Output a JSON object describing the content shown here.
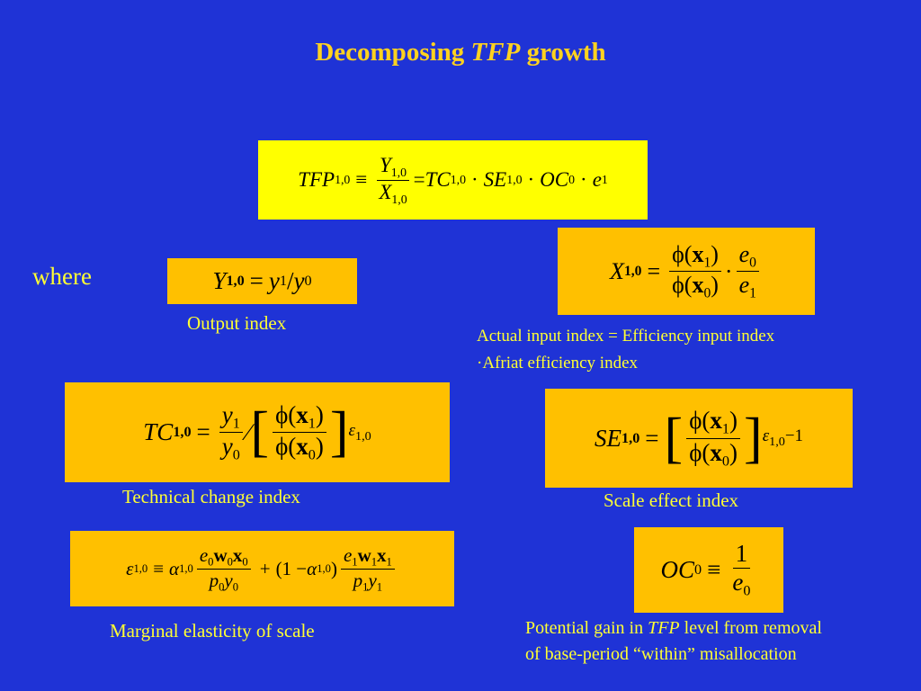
{
  "title": {
    "lead": "Decomposing",
    "italic": "TFP",
    "rest": "growth"
  },
  "where": "where",
  "formulas": {
    "tfp": [
      "TFP",
      "1,0",
      "≡",
      "Y",
      "1,0",
      "X",
      "1,0",
      "=",
      "TC",
      "1,0",
      "·",
      "SE",
      "1,0",
      "·",
      "OC",
      "0",
      "·",
      "e",
      "1"
    ],
    "y": [
      "Y",
      "1,0",
      "=",
      "y",
      "1",
      "/",
      "y",
      "0"
    ],
    "x": [
      "X",
      "1,0",
      "=",
      "ϕ(",
      "x",
      "1",
      ")",
      "ϕ(",
      "x",
      "0",
      ")",
      "·",
      "e",
      "0",
      "e",
      "1"
    ],
    "tc": [
      "TC",
      "1,0",
      "=",
      "y",
      "1",
      "y",
      "0",
      "∕",
      "[",
      "ϕ(",
      "x",
      "1",
      ")",
      "ϕ(",
      "x",
      "0",
      ")",
      "]",
      "ε",
      "1,0"
    ],
    "se": [
      "SE",
      "1,0",
      "=",
      "[",
      "ϕ(",
      "x",
      "1",
      ")",
      "ϕ(",
      "x",
      "0",
      ")",
      "]",
      "ε",
      "1,0",
      "−1"
    ],
    "eps": [
      "ε",
      "1,0",
      "≡",
      "α",
      "1,0",
      "e",
      "0",
      "w",
      "0",
      "x",
      "0",
      "p",
      "0",
      "y",
      "0",
      "+",
      "(1 −",
      "α",
      "1,0",
      ")",
      "e",
      "1",
      "w",
      "1",
      "x",
      "1",
      "p",
      "1",
      "y",
      "1"
    ],
    "oc": [
      "OC",
      "0",
      "≡",
      "1",
      "e",
      "0"
    ]
  },
  "captions": {
    "output": "Output index",
    "input_1": "Actual input index = Efficiency input index",
    "input_2": "·Afriat efficiency index",
    "tc": "Technical change index",
    "se": "Scale effect index",
    "eps": "Marginal elasticity of scale",
    "oc": {
      "lead": "Potential gain in",
      "italic": "TFP",
      "rest": "level from removal",
      "line2": "of base-period “within” misallocation"
    }
  }
}
